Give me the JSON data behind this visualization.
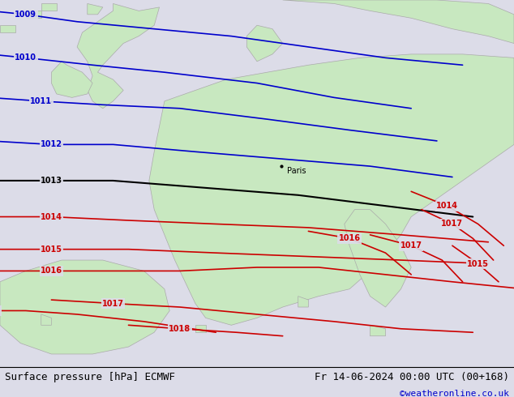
{
  "title_left": "Surface pressure [hPa] ECMWF",
  "title_right": "Fr 14-06-2024 00:00 UTC (00+168)",
  "credit": "©weatheronline.co.uk",
  "fig_width": 6.34,
  "fig_height": 4.9,
  "dpi": 100,
  "land_color": "#c8e8c0",
  "coast_color": "#aaaaaa",
  "sea_color": "#dcdce8",
  "label_color_blue": "#0000cc",
  "label_color_black": "#000000",
  "label_color_red": "#cc0000",
  "title_fontsize": 9,
  "credit_color": "#0000cc",
  "credit_fontsize": 8
}
